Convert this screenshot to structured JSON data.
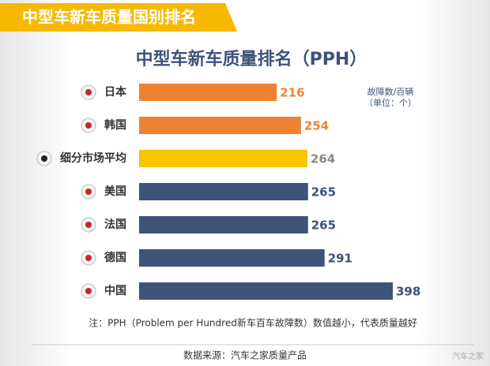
{
  "header": {
    "title": "中型车新车质量国别排名"
  },
  "chart_data": {
    "type": "bar",
    "orientation": "horizontal",
    "title": "中型车新车质量排名（PPH）",
    "unit_label": [
      "故障数/百辆",
      "（单位：个）"
    ],
    "categories": [
      "日本",
      "韩国",
      "细分市场平均",
      "美国",
      "法国",
      "德国",
      "中国"
    ],
    "values": [
      216,
      254,
      264,
      265,
      265,
      291,
      398
    ],
    "colors": [
      "#ef8232",
      "#ef8232",
      "#f8c300",
      "#3e5378",
      "#3e5378",
      "#3e5378",
      "#3e5378"
    ],
    "label_colors": [
      "#ef8232",
      "#ef8232",
      "#8a8a8a",
      "#3e5378",
      "#3e5378",
      "#3e5378",
      "#3e5378"
    ],
    "note": "注：PPH（Problem per Hundred新车百车故障数）数值越小，代表质量越好",
    "source": "数据来源：汽车之家质量产品"
  },
  "watermark": "汽车之家"
}
